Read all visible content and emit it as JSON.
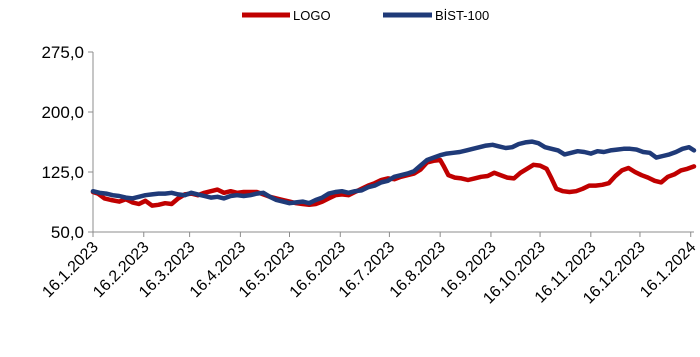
{
  "chart_data": {
    "type": "line",
    "title": "",
    "xlabel": "",
    "ylabel": "",
    "ylim": [
      50,
      275
    ],
    "yticks": [
      "275,0",
      "200,0",
      "125,0",
      "50,0"
    ],
    "ytick_values": [
      275,
      200,
      125,
      50
    ],
    "x_range": [
      "2023-01-16",
      "2024-01-18"
    ],
    "xticks": [
      "16.1.2023",
      "16.2.2023",
      "16.3.2023",
      "16.4.2023",
      "16.5.2023",
      "16.6.2023",
      "16.7.2023",
      "16.8.2023",
      "16.9.2023",
      "16.10.2023",
      "16.11.2023",
      "16.12.2023",
      "16.1.2024"
    ],
    "xtick_dates": [
      "2023-01-16",
      "2023-02-16",
      "2023-03-16",
      "2023-04-16",
      "2023-05-16",
      "2023-06-16",
      "2023-07-16",
      "2023-08-16",
      "2023-09-16",
      "2023-10-16",
      "2023-11-16",
      "2023-12-16",
      "2024-01-16"
    ],
    "legend_position": "top",
    "grid": false,
    "series": [
      {
        "name": "LOGO",
        "color": "#c00000",
        "points": [
          [
            "2023-01-16",
            100
          ],
          [
            "2023-01-19",
            98
          ],
          [
            "2023-01-23",
            92
          ],
          [
            "2023-01-27",
            90
          ],
          [
            "2023-02-01",
            88
          ],
          [
            "2023-02-05",
            91
          ],
          [
            "2023-02-09",
            87
          ],
          [
            "2023-02-13",
            85
          ],
          [
            "2023-02-17",
            89
          ],
          [
            "2023-02-21",
            83
          ],
          [
            "2023-02-25",
            84
          ],
          [
            "2023-03-01",
            86
          ],
          [
            "2023-03-05",
            85
          ],
          [
            "2023-03-09",
            92
          ],
          [
            "2023-03-13",
            97
          ],
          [
            "2023-03-17",
            98
          ],
          [
            "2023-03-21",
            96
          ],
          [
            "2023-03-25",
            99
          ],
          [
            "2023-03-29",
            101
          ],
          [
            "2023-04-02",
            103
          ],
          [
            "2023-04-06",
            99
          ],
          [
            "2023-04-10",
            101
          ],
          [
            "2023-04-14",
            99
          ],
          [
            "2023-04-18",
            100
          ],
          [
            "2023-04-22",
            100
          ],
          [
            "2023-04-26",
            100
          ],
          [
            "2023-04-30",
            97
          ],
          [
            "2023-05-04",
            94
          ],
          [
            "2023-05-08",
            92
          ],
          [
            "2023-05-12",
            90
          ],
          [
            "2023-05-16",
            88
          ],
          [
            "2023-05-20",
            86
          ],
          [
            "2023-05-24",
            85
          ],
          [
            "2023-05-28",
            84
          ],
          [
            "2023-06-01",
            85
          ],
          [
            "2023-06-05",
            88
          ],
          [
            "2023-06-09",
            92
          ],
          [
            "2023-06-13",
            96
          ],
          [
            "2023-06-17",
            97
          ],
          [
            "2023-06-21",
            96
          ],
          [
            "2023-06-25",
            100
          ],
          [
            "2023-06-29",
            104
          ],
          [
            "2023-07-03",
            108
          ],
          [
            "2023-07-07",
            111
          ],
          [
            "2023-07-11",
            115
          ],
          [
            "2023-07-15",
            117
          ],
          [
            "2023-07-19",
            116
          ],
          [
            "2023-07-23",
            119
          ],
          [
            "2023-07-27",
            121
          ],
          [
            "2023-07-31",
            123
          ],
          [
            "2023-08-04",
            128
          ],
          [
            "2023-08-08",
            137
          ],
          [
            "2023-08-12",
            139
          ],
          [
            "2023-08-16",
            140
          ],
          [
            "2023-08-18",
            133
          ],
          [
            "2023-08-21",
            121
          ],
          [
            "2023-08-25",
            118
          ],
          [
            "2023-08-29",
            117
          ],
          [
            "2023-09-02",
            115
          ],
          [
            "2023-09-06",
            117
          ],
          [
            "2023-09-10",
            119
          ],
          [
            "2023-09-14",
            120
          ],
          [
            "2023-09-18",
            124
          ],
          [
            "2023-09-22",
            121
          ],
          [
            "2023-09-26",
            118
          ],
          [
            "2023-09-30",
            117
          ],
          [
            "2023-10-04",
            124
          ],
          [
            "2023-10-08",
            129
          ],
          [
            "2023-10-12",
            134
          ],
          [
            "2023-10-16",
            133
          ],
          [
            "2023-10-20",
            129
          ],
          [
            "2023-10-23",
            117
          ],
          [
            "2023-10-26",
            104
          ],
          [
            "2023-10-30",
            101
          ],
          [
            "2023-11-03",
            100
          ],
          [
            "2023-11-07",
            101
          ],
          [
            "2023-11-11",
            104
          ],
          [
            "2023-11-15",
            108
          ],
          [
            "2023-11-19",
            108
          ],
          [
            "2023-11-23",
            109
          ],
          [
            "2023-11-27",
            111
          ],
          [
            "2023-12-01",
            120
          ],
          [
            "2023-12-05",
            127
          ],
          [
            "2023-12-09",
            130
          ],
          [
            "2023-12-13",
            125
          ],
          [
            "2023-12-17",
            121
          ],
          [
            "2023-12-21",
            118
          ],
          [
            "2023-12-25",
            114
          ],
          [
            "2023-12-29",
            112
          ],
          [
            "2024-01-02",
            119
          ],
          [
            "2024-01-06",
            122
          ],
          [
            "2024-01-10",
            127
          ],
          [
            "2024-01-14",
            129
          ],
          [
            "2024-01-18",
            132
          ]
        ]
      },
      {
        "name": "BİST-100",
        "color": "#1f3a78",
        "points": [
          [
            "2023-01-16",
            101
          ],
          [
            "2023-01-20",
            99
          ],
          [
            "2023-01-24",
            98
          ],
          [
            "2023-01-28",
            96
          ],
          [
            "2023-02-01",
            95
          ],
          [
            "2023-02-05",
            93
          ],
          [
            "2023-02-09",
            92
          ],
          [
            "2023-02-13",
            94
          ],
          [
            "2023-02-17",
            96
          ],
          [
            "2023-02-21",
            97
          ],
          [
            "2023-02-25",
            98
          ],
          [
            "2023-03-01",
            98
          ],
          [
            "2023-03-05",
            99
          ],
          [
            "2023-03-09",
            97
          ],
          [
            "2023-03-13",
            96
          ],
          [
            "2023-03-17",
            99
          ],
          [
            "2023-03-21",
            97
          ],
          [
            "2023-03-25",
            95
          ],
          [
            "2023-03-29",
            93
          ],
          [
            "2023-04-02",
            94
          ],
          [
            "2023-04-06",
            92
          ],
          [
            "2023-04-10",
            95
          ],
          [
            "2023-04-14",
            96
          ],
          [
            "2023-04-18",
            95
          ],
          [
            "2023-04-22",
            96
          ],
          [
            "2023-04-26",
            98
          ],
          [
            "2023-04-30",
            99
          ],
          [
            "2023-05-04",
            94
          ],
          [
            "2023-05-08",
            90
          ],
          [
            "2023-05-12",
            88
          ],
          [
            "2023-05-16",
            86
          ],
          [
            "2023-05-20",
            87
          ],
          [
            "2023-05-24",
            88
          ],
          [
            "2023-05-28",
            86
          ],
          [
            "2023-06-01",
            90
          ],
          [
            "2023-06-05",
            93
          ],
          [
            "2023-06-09",
            98
          ],
          [
            "2023-06-13",
            100
          ],
          [
            "2023-06-17",
            101
          ],
          [
            "2023-06-21",
            99
          ],
          [
            "2023-06-25",
            101
          ],
          [
            "2023-06-29",
            102
          ],
          [
            "2023-07-03",
            106
          ],
          [
            "2023-07-07",
            108
          ],
          [
            "2023-07-11",
            112
          ],
          [
            "2023-07-15",
            114
          ],
          [
            "2023-07-19",
            119
          ],
          [
            "2023-07-23",
            121
          ],
          [
            "2023-07-27",
            123
          ],
          [
            "2023-07-31",
            126
          ],
          [
            "2023-08-04",
            133
          ],
          [
            "2023-08-08",
            140
          ],
          [
            "2023-08-12",
            143
          ],
          [
            "2023-08-16",
            146
          ],
          [
            "2023-08-20",
            148
          ],
          [
            "2023-08-24",
            149
          ],
          [
            "2023-08-28",
            150
          ],
          [
            "2023-09-01",
            152
          ],
          [
            "2023-09-05",
            154
          ],
          [
            "2023-09-09",
            156
          ],
          [
            "2023-09-13",
            158
          ],
          [
            "2023-09-17",
            159
          ],
          [
            "2023-09-21",
            157
          ],
          [
            "2023-09-25",
            155
          ],
          [
            "2023-09-29",
            156
          ],
          [
            "2023-10-03",
            160
          ],
          [
            "2023-10-07",
            162
          ],
          [
            "2023-10-11",
            163
          ],
          [
            "2023-10-15",
            161
          ],
          [
            "2023-10-19",
            156
          ],
          [
            "2023-10-23",
            154
          ],
          [
            "2023-10-27",
            152
          ],
          [
            "2023-10-31",
            147
          ],
          [
            "2023-11-04",
            149
          ],
          [
            "2023-11-08",
            151
          ],
          [
            "2023-11-12",
            150
          ],
          [
            "2023-11-16",
            148
          ],
          [
            "2023-11-20",
            151
          ],
          [
            "2023-11-24",
            150
          ],
          [
            "2023-11-28",
            152
          ],
          [
            "2023-12-02",
            153
          ],
          [
            "2023-12-06",
            154
          ],
          [
            "2023-12-10",
            154
          ],
          [
            "2023-12-14",
            153
          ],
          [
            "2023-12-18",
            150
          ],
          [
            "2023-12-22",
            149
          ],
          [
            "2023-12-26",
            143
          ],
          [
            "2023-12-30",
            145
          ],
          [
            "2024-01-03",
            147
          ],
          [
            "2024-01-07",
            150
          ],
          [
            "2024-01-11",
            154
          ],
          [
            "2024-01-15",
            156
          ],
          [
            "2024-01-18",
            152
          ]
        ]
      }
    ]
  }
}
